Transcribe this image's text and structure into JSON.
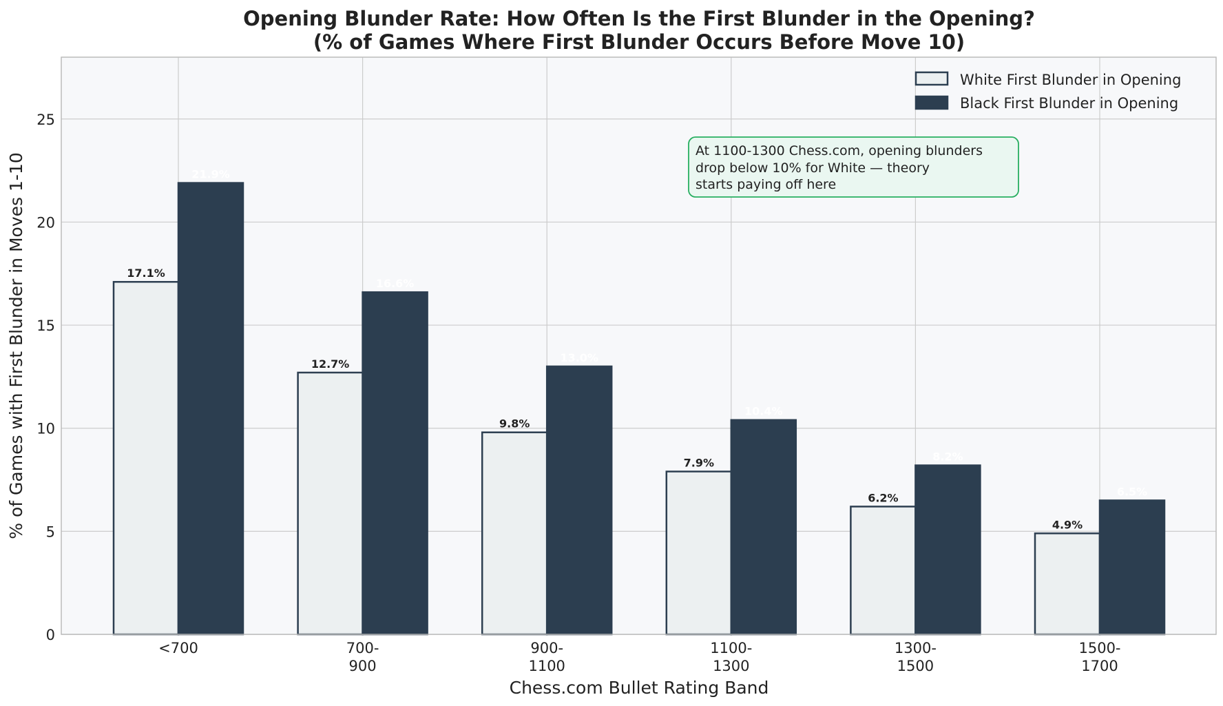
{
  "chart_data": {
    "type": "bar",
    "title": [
      "Opening Blunder Rate: How Often Is the First Blunder in the Opening?",
      "(% of Games Where First Blunder Occurs Before Move 10)"
    ],
    "xlabel": "Chess.com Bullet Rating Band",
    "ylabel": "% of Games with First Blunder in Moves 1-10",
    "categories": [
      [
        "<700"
      ],
      [
        "700-",
        "900"
      ],
      [
        "900-",
        "1100"
      ],
      [
        "1100-",
        "1300"
      ],
      [
        "1300-",
        "1500"
      ],
      [
        "1500-",
        "1700"
      ]
    ],
    "series": [
      {
        "name": "White First Blunder in Opening",
        "values": [
          17.1,
          12.7,
          9.8,
          7.9,
          6.2,
          4.9
        ],
        "labels": [
          "17.1%",
          "12.7%",
          "9.8%",
          "7.9%",
          "6.2%",
          "4.9%"
        ],
        "fill": "#ecf0f1",
        "stroke": "#2c3e50",
        "label_color": "#222222"
      },
      {
        "name": "Black First Blunder in Opening",
        "values": [
          21.9,
          16.6,
          13.0,
          10.4,
          8.2,
          6.5
        ],
        "labels": [
          "21.9%",
          "16.6%",
          "13.0%",
          "10.4%",
          "8.2%",
          "6.5%"
        ],
        "fill": "#2c3e50",
        "stroke": "#2c3e50",
        "label_color": "#ffffff"
      }
    ],
    "ylim": [
      0,
      28
    ],
    "yticks": [
      0,
      5,
      10,
      15,
      20,
      25
    ],
    "grid": true,
    "legend_position": "top-right",
    "annotation": {
      "lines": [
        "At 1100-1300 Chess.com, opening blunders",
        "drop below 10% for White — theory",
        "starts paying off here"
      ],
      "border_color": "#27ae60",
      "fill_color": "#eaf7f1"
    },
    "colors": {
      "plot_bg": "#f7f8fa",
      "grid": "#cccccc",
      "axis": "#bbbbbb",
      "text": "#222222"
    }
  }
}
